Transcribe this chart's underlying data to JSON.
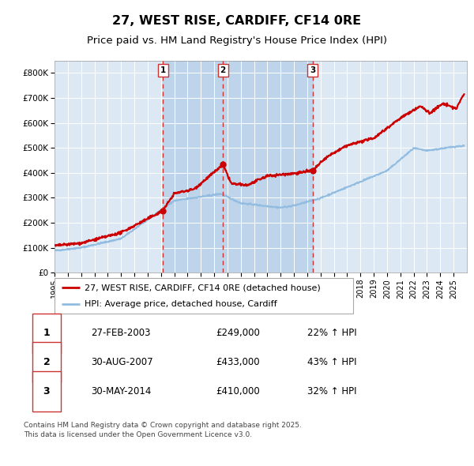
{
  "title": "27, WEST RISE, CARDIFF, CF14 0RE",
  "subtitle": "Price paid vs. HM Land Registry's House Price Index (HPI)",
  "ylim": [
    0,
    850000
  ],
  "yticks": [
    0,
    100000,
    200000,
    300000,
    400000,
    500000,
    600000,
    700000,
    800000
  ],
  "ytick_labels": [
    "£0",
    "£100K",
    "£200K",
    "£300K",
    "£400K",
    "£500K",
    "£600K",
    "£700K",
    "£800K"
  ],
  "xlim_start": 1995,
  "xlim_end": 2026,
  "plot_bg_color": "#dce9f5",
  "grid_color": "#ffffff",
  "hpi_line_color": "#92bce0",
  "price_line_color": "#cc0000",
  "sale_marker_color": "#cc0000",
  "dashed_line_color": "#cc3333",
  "highlight_band_color": "#bdd4ea",
  "sale_events": [
    {
      "label": "1",
      "date_num": 2003.15,
      "price": 249000,
      "hpi_pct": "22% ↑ HPI",
      "date_str": "27-FEB-2003"
    },
    {
      "label": "2",
      "date_num": 2007.66,
      "price": 433000,
      "hpi_pct": "43% ↑ HPI",
      "date_str": "30-AUG-2007"
    },
    {
      "label": "3",
      "date_num": 2014.41,
      "price": 410000,
      "hpi_pct": "32% ↑ HPI",
      "date_str": "30-MAY-2014"
    }
  ],
  "legend_line1": "27, WEST RISE, CARDIFF, CF14 0RE (detached house)",
  "legend_line2": "HPI: Average price, detached house, Cardiff",
  "footer": "Contains HM Land Registry data © Crown copyright and database right 2025.\nThis data is licensed under the Open Government Licence v3.0.",
  "title_fontsize": 11.5,
  "subtitle_fontsize": 9.5,
  "tick_fontsize": 7.5,
  "legend_fontsize": 8,
  "footer_fontsize": 6.5
}
